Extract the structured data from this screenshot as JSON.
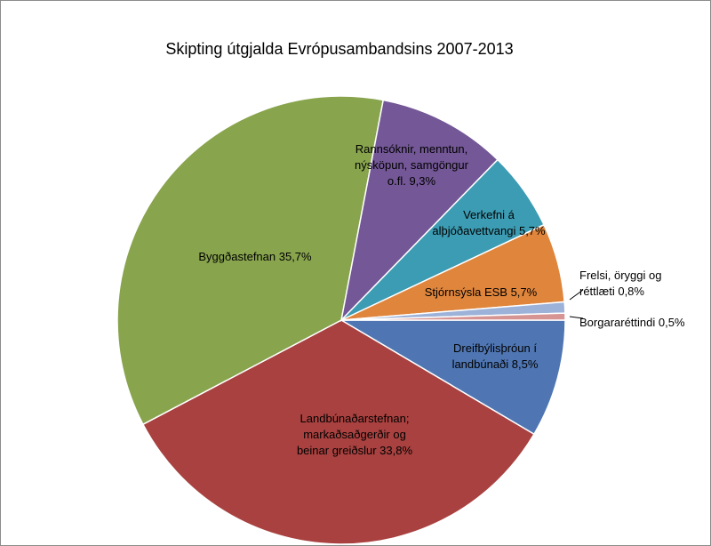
{
  "chart_data": {
    "type": "pie",
    "title": "Skipting útgjalda Evrópusambandsins  2007-2013",
    "start_angle_deg": 0,
    "direction": "clockwise",
    "slices": [
      {
        "name": "Dreifbýlisþróun í landbúnaði",
        "value": 8.5,
        "label_lines": [
          "Dreifbýlisþróun í",
          "landbúnaði 8,5%"
        ],
        "color": "#4f76b3"
      },
      {
        "name": "Landbúnaðarstefnan; markaðsaðgerðir og beinar greiðslur",
        "value": 33.8,
        "label_lines": [
          "Landbúnaðarstefnan;",
          "markaðsaðgerðir og",
          "beinar greiðslur 33,8%"
        ],
        "color": "#a8413f"
      },
      {
        "name": "Byggðastefnan",
        "value": 35.7,
        "label_lines": [
          "Byggðastefnan 35,7%"
        ],
        "color": "#88a44d"
      },
      {
        "name": "Rannsóknir, menntun, nýsköpun, samgöngur o.fl.",
        "value": 9.3,
        "label_lines": [
          "Rannsóknir, menntun,",
          "nýsköpun, samgöngur",
          "o.fl. 9,3%"
        ],
        "color": "#735796"
      },
      {
        "name": "Verkefni á alþjóðavettvangi",
        "value": 5.7,
        "label_lines": [
          "Verkefni á",
          "alþjóðavettvangi 5,7%"
        ],
        "color": "#3c9cb3"
      },
      {
        "name": "Stjórnsýsla ESB",
        "value": 5.7,
        "label_lines": [
          "Stjórnsýsla ESB 5,7%"
        ],
        "color": "#df853c"
      },
      {
        "name": "Frelsi, öryggi og réttlæti",
        "value": 0.8,
        "label_lines": [
          "Frelsi, öryggi og",
          "réttlæti 0,8%"
        ],
        "color": "#9cb2d8"
      },
      {
        "name": "Borgararéttindi",
        "value": 0.5,
        "label_lines": [
          "Borgararéttindi 0,5%"
        ],
        "color": "#d69593"
      }
    ]
  }
}
